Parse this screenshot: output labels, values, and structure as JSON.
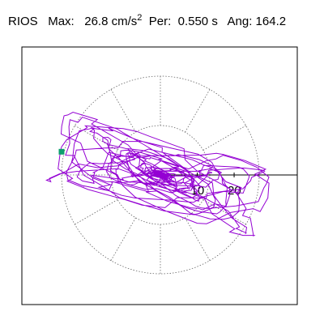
{
  "header": {
    "station": "RIOS",
    "max_label": "Max:",
    "max_value": "26.8",
    "max_unit": "cm/s",
    "max_exp": "2",
    "per_label": "Per:",
    "per_value": "0.550",
    "per_unit": "s",
    "ang_label": "Ang:",
    "ang_value": "164.2"
  },
  "chart_data": {
    "type": "polar-orbit",
    "title": "RIOS",
    "max_amplitude": 26.8,
    "max_unit": "cm/s2",
    "period_s": 0.55,
    "angle_deg": 164.2,
    "radial_ticks": [
      10,
      20
    ],
    "rmax": 26.8,
    "grid": "dotted polar rings and 30° spokes",
    "trace_color": "#9400d3",
    "marker_color": "#0e9f6e",
    "marker_position": {
      "x": -26.8,
      "y": 6.3
    }
  }
}
